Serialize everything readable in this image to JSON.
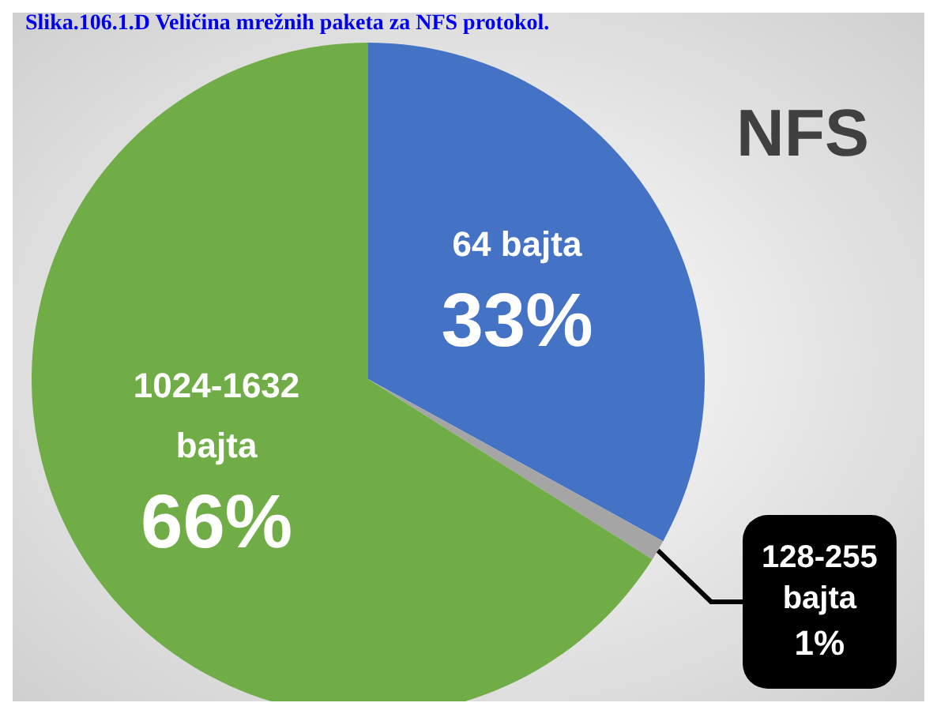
{
  "chart_data": {
    "type": "pie",
    "title": "NFS",
    "annotations": [
      "Slika.106.1.D Veličina mrežnih paketa za NFS protokol."
    ],
    "categories": [
      "64 bajta",
      "128-255 bajta",
      "1024-1632 bajta"
    ],
    "values": [
      33,
      1,
      66
    ],
    "value_labels": [
      "33%",
      "1%",
      "66%"
    ],
    "colors": [
      "#4472c4",
      "#a5a5a5",
      "#70ad47"
    ],
    "legend": false
  }
}
